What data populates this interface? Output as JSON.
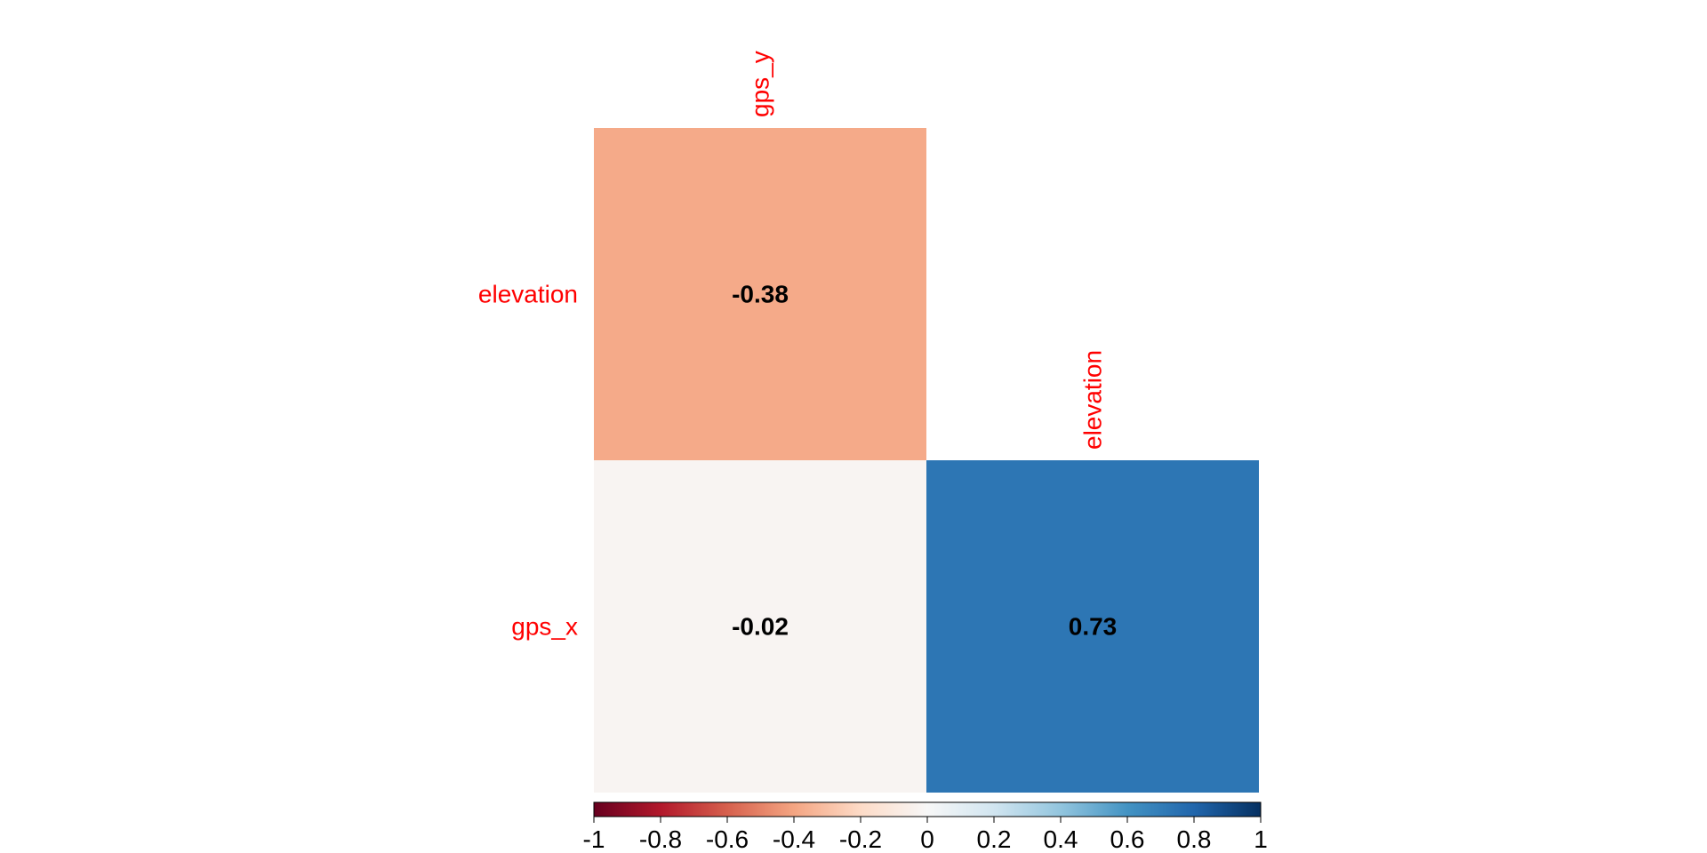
{
  "chart_data": {
    "type": "heatmap",
    "title": "",
    "variables": [
      "gps_y",
      "elevation",
      "gps_x"
    ],
    "column_labels": [
      "gps_y",
      "elevation"
    ],
    "row_labels": [
      "elevation",
      "gps_x"
    ],
    "cells": [
      {
        "row": "elevation",
        "col": "gps_y",
        "value": -0.38,
        "label": "-0.38"
      },
      {
        "row": "gps_x",
        "col": "gps_y",
        "value": -0.02,
        "label": "-0.02"
      },
      {
        "row": "gps_x",
        "col": "elevation",
        "value": 0.73,
        "label": "0.73"
      }
    ],
    "layout": "lower-triangular",
    "colorbar": {
      "range": [
        -1,
        1
      ],
      "ticks": [
        -1,
        -0.8,
        -0.6,
        -0.4,
        -0.2,
        0,
        0.2,
        0.4,
        0.6,
        0.8,
        1
      ],
      "tick_labels": [
        "-1",
        "-0.8",
        "-0.6",
        "-0.4",
        "-0.2",
        "0",
        "0.2",
        "0.4",
        "0.6",
        "0.8",
        "1"
      ],
      "placement": "bottom",
      "colors": [
        "#67001f",
        "#b2182b",
        "#d6604d",
        "#f4a582",
        "#fddbc7",
        "#f7f7f7",
        "#d1e5f0",
        "#92c5de",
        "#4393c3",
        "#2166ac",
        "#053061"
      ]
    },
    "label_color": "#ff0000",
    "value_text_color": "#000000"
  }
}
